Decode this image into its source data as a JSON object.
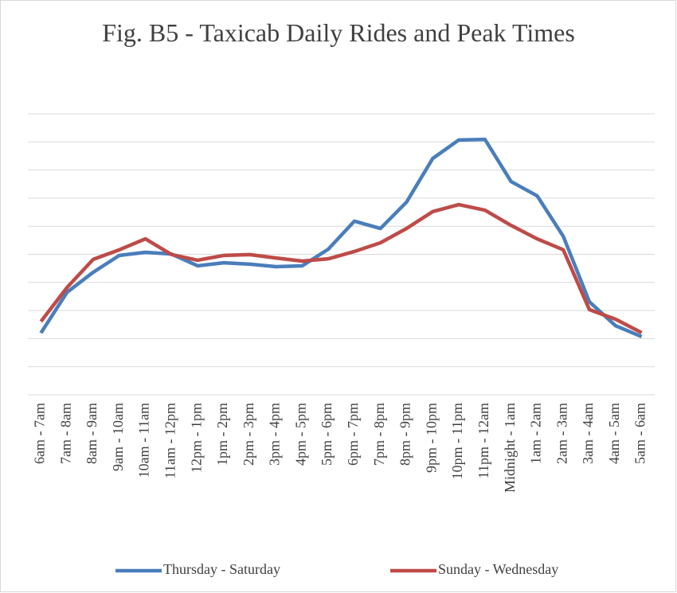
{
  "chart_data": {
    "type": "line",
    "title": "Fig. B5 - Taxicab Daily Rides and Peak Times",
    "categories": [
      "6am - 7am",
      "7am - 8am",
      "8am - 9am",
      "9am - 10am",
      "10am - 11am",
      "11am - 12pm",
      "12pm - 1pm",
      "1pm - 2pm",
      "2pm - 3pm",
      "3pm - 4pm",
      "4pm - 5pm",
      "5pm - 6pm",
      "6pm - 7pm",
      "7pm - 8pm",
      "8pm - 9pm",
      "9pm - 10pm",
      "10pm - 11pm",
      "11pm - 12am",
      "Midnight - 1am",
      "1am - 2am",
      "2am - 3am",
      "3am - 4am",
      "4am - 5am",
      "5am - 6am"
    ],
    "series": [
      {
        "name": "Thursday - Saturday",
        "color": "#4a7ebb",
        "values": [
          2.2,
          3.65,
          4.36,
          4.96,
          5.07,
          5.01,
          4.59,
          4.7,
          4.65,
          4.56,
          4.59,
          5.18,
          6.18,
          5.92,
          6.86,
          8.41,
          9.07,
          9.09,
          7.59,
          7.08,
          5.64,
          3.31,
          2.46,
          2.07
        ]
      },
      {
        "name": "Sunday - Wednesday",
        "color": "#be4b48",
        "values": [
          2.61,
          3.82,
          4.82,
          5.16,
          5.55,
          4.99,
          4.79,
          4.96,
          4.99,
          4.87,
          4.76,
          4.84,
          5.1,
          5.41,
          5.92,
          6.52,
          6.77,
          6.57,
          6.03,
          5.55,
          5.16,
          3.03,
          2.69,
          2.21
        ]
      }
    ],
    "ylim": [
      0,
      10
    ],
    "yticks": [
      0,
      1,
      2,
      3,
      4,
      5,
      6,
      7,
      8,
      9,
      10
    ],
    "grid": true,
    "legend": "bottom"
  }
}
